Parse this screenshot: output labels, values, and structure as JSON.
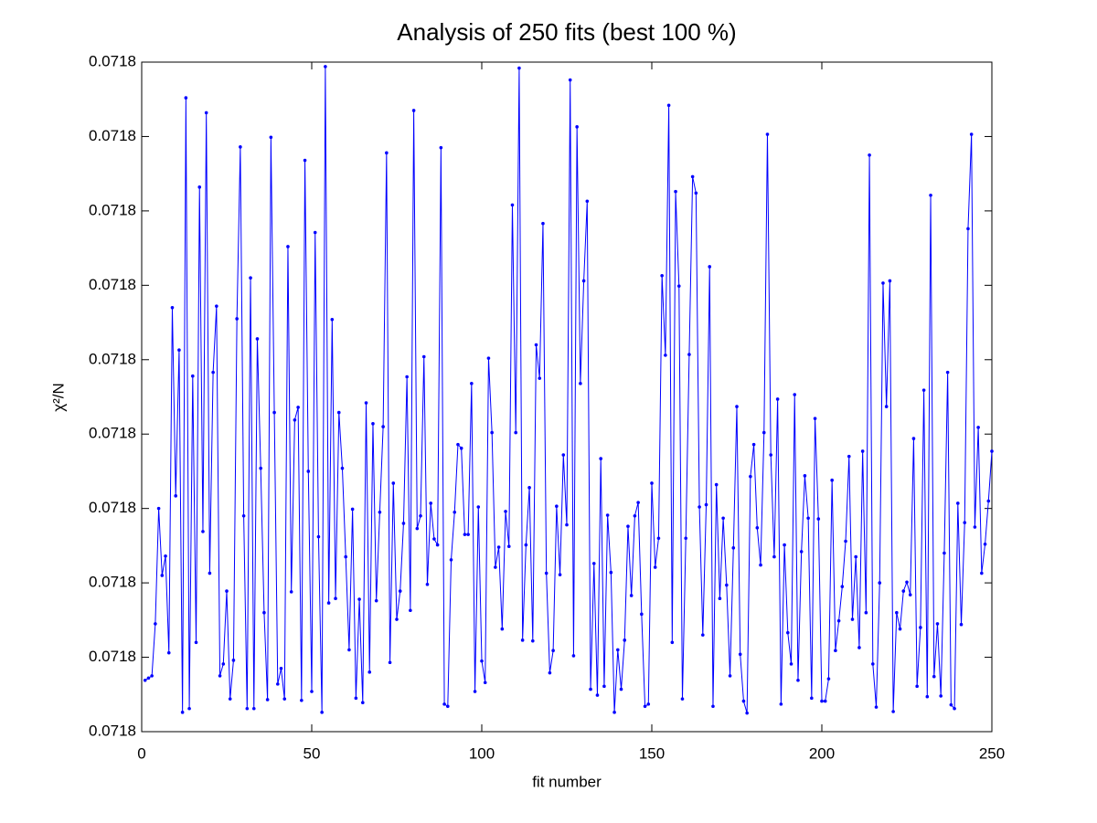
{
  "chart_data": {
    "type": "line",
    "title": "Analysis of 250 fits (best 100 %)",
    "x_label": "fit number",
    "y_label": "χ²/N",
    "color": "#0000ff",
    "xlim": [
      0,
      250
    ],
    "xticks": [
      0,
      50,
      100,
      150,
      200,
      250
    ],
    "ylim": [
      0.071796,
      0.071805
    ],
    "yticks": [
      {
        "value": 0.071796,
        "label": "0.0718"
      },
      {
        "value": 0.071797,
        "label": "0.0718"
      },
      {
        "value": 0.071798,
        "label": "0.0718"
      },
      {
        "value": 0.071799,
        "label": "0.0718"
      },
      {
        "value": 0.0718,
        "label": "0.0718"
      },
      {
        "value": 0.071801,
        "label": "0.0718"
      },
      {
        "value": 0.071802,
        "label": "0.0718"
      },
      {
        "value": 0.071803,
        "label": "0.0718"
      },
      {
        "value": 0.071804,
        "label": "0.0718"
      },
      {
        "value": 0.071805,
        "label": "0.0718"
      }
    ],
    "x": [
      1,
      2,
      3,
      4,
      5,
      6,
      7,
      8,
      9,
      10,
      11,
      12,
      13,
      14,
      15,
      16,
      17,
      18,
      19,
      20,
      21,
      22,
      23,
      24,
      25,
      26,
      27,
      28,
      29,
      30,
      31,
      32,
      33,
      34,
      35,
      36,
      37,
      38,
      39,
      40,
      41,
      42,
      43,
      44,
      45,
      46,
      47,
      48,
      49,
      50,
      51,
      52,
      53,
      54,
      55,
      56,
      57,
      58,
      59,
      60,
      61,
      62,
      63,
      64,
      65,
      66,
      67,
      68,
      69,
      70,
      71,
      72,
      73,
      74,
      75,
      76,
      77,
      78,
      79,
      80,
      81,
      82,
      83,
      84,
      85,
      86,
      87,
      88,
      89,
      90,
      91,
      92,
      93,
      94,
      95,
      96,
      97,
      98,
      99,
      100,
      101,
      102,
      103,
      104,
      105,
      106,
      107,
      108,
      109,
      110,
      111,
      112,
      113,
      114,
      115,
      116,
      117,
      118,
      119,
      120,
      121,
      122,
      123,
      124,
      125,
      126,
      127,
      128,
      129,
      130,
      131,
      132,
      133,
      134,
      135,
      136,
      137,
      138,
      139,
      140,
      141,
      142,
      143,
      144,
      145,
      146,
      147,
      148,
      149,
      150,
      151,
      152,
      153,
      154,
      155,
      156,
      157,
      158,
      159,
      160,
      161,
      162,
      163,
      164,
      165,
      166,
      167,
      168,
      169,
      170,
      171,
      172,
      173,
      174,
      175,
      176,
      177,
      178,
      179,
      180,
      181,
      182,
      183,
      184,
      185,
      186,
      187,
      188,
      189,
      190,
      191,
      192,
      193,
      194,
      195,
      196,
      197,
      198,
      199,
      200,
      201,
      202,
      203,
      204,
      205,
      206,
      207,
      208,
      209,
      210,
      211,
      212,
      213,
      214,
      215,
      216,
      217,
      218,
      219,
      220,
      221,
      222,
      223,
      224,
      225,
      226,
      227,
      228,
      229,
      230,
      231,
      232,
      233,
      234,
      235,
      236,
      237,
      238,
      239,
      240,
      241,
      242,
      243,
      244,
      245,
      246,
      247,
      248,
      249,
      250
    ],
    "values": [
      0.07179669,
      0.07179672,
      0.07179675,
      0.07179745,
      0.071799,
      0.0717981,
      0.07179836,
      0.07179706,
      0.0718017,
      0.07179917,
      0.07180113,
      0.07179626,
      0.07180452,
      0.07179631,
      0.07180078,
      0.0717972,
      0.07180332,
      0.07179869,
      0.07180432,
      0.07179813,
      0.07180083,
      0.07180172,
      0.07179675,
      0.07179691,
      0.07179789,
      0.07179644,
      0.07179696,
      0.07180155,
      0.07180386,
      0.0717989,
      0.07179631,
      0.0718021,
      0.07179631,
      0.07180128,
      0.07179954,
      0.0717976,
      0.07179643,
      0.07180399,
      0.07180029,
      0.07179664,
      0.07179685,
      0.07179644,
      0.07180252,
      0.07179788,
      0.07180019,
      0.07180036,
      0.07179642,
      0.07180368,
      0.0717995,
      0.07179654,
      0.07180271,
      0.07179862,
      0.07179626,
      0.07180494,
      0.07179773,
      0.07180154,
      0.07179779,
      0.07180029,
      0.07179954,
      0.07179835,
      0.0717971,
      0.07179899,
      0.07179645,
      0.07179778,
      0.07179639,
      0.07180042,
      0.0717968,
      0.07180014,
      0.07179776,
      0.07179895,
      0.0718001,
      0.07180378,
      0.07179693,
      0.07179934,
      0.07179751,
      0.07179789,
      0.0717988,
      0.07180077,
      0.07179763,
      0.07180435,
      0.07179873,
      0.0717989,
      0.07180104,
      0.07179798,
      0.07179907,
      0.07179859,
      0.07179851,
      0.07180385,
      0.07179637,
      0.07179634,
      0.07179831,
      0.07179895,
      0.07179986,
      0.07179981,
      0.07179865,
      0.07179865,
      0.07180068,
      0.07179654,
      0.07179902,
      0.07179695,
      0.07179666,
      0.07180102,
      0.07180002,
      0.07179821,
      0.07179848,
      0.07179738,
      0.07179896,
      0.07179849,
      0.07180308,
      0.07180002,
      0.07180492,
      0.07179723,
      0.07179851,
      0.07179928,
      0.07179722,
      0.0718012,
      0.07180075,
      0.07180283,
      0.07179813,
      0.07179679,
      0.07179709,
      0.07179903,
      0.07179811,
      0.07179972,
      0.07179878,
      0.07180476,
      0.07179702,
      0.07180413,
      0.07180068,
      0.07180206,
      0.07180313,
      0.07179657,
      0.07179826,
      0.07179649,
      0.07179967,
      0.07179661,
      0.07179891,
      0.07179814,
      0.07179626,
      0.0717971,
      0.07179657,
      0.07179723,
      0.07179876,
      0.07179783,
      0.0717989,
      0.07179908,
      0.07179758,
      0.07179634,
      0.07179637,
      0.07179934,
      0.07179821,
      0.0717986,
      0.07180213,
      0.07180106,
      0.07180442,
      0.0717972,
      0.07180326,
      0.07180199,
      0.07179644,
      0.0717986,
      0.07180107,
      0.07180346,
      0.07180324,
      0.07179902,
      0.0717973,
      0.07179905,
      0.07180225,
      0.07179634,
      0.07179932,
      0.07179779,
      0.07179887,
      0.07179797,
      0.07179675,
      0.07179847,
      0.07180037,
      0.07179704,
      0.07179641,
      0.07179625,
      0.07179943,
      0.07179986,
      0.07179874,
      0.07179824,
      0.07180002,
      0.07180403,
      0.07179972,
      0.07179835,
      0.07180047,
      0.07179637,
      0.07179851,
      0.07179733,
      0.07179691,
      0.07180053,
      0.07179669,
      0.07179842,
      0.07179944,
      0.07179887,
      0.07179645,
      0.07180021,
      0.07179886,
      0.07179641,
      0.07179641,
      0.07179671,
      0.07179938,
      0.07179709,
      0.07179749,
      0.07179795,
      0.07179856,
      0.0717997,
      0.07179751,
      0.07179835,
      0.07179713,
      0.07179977,
      0.0717976,
      0.07180375,
      0.07179691,
      0.07179633,
      0.071798,
      0.07180203,
      0.07180037,
      0.07180206,
      0.07179627,
      0.0717976,
      0.07179738,
      0.07179789,
      0.07179801,
      0.07179784,
      0.07179994,
      0.07179661,
      0.0717974,
      0.07180059,
      0.07179647,
      0.07180321,
      0.07179674,
      0.07179745,
      0.07179648,
      0.0717984,
      0.07180083,
      0.07179636,
      0.07179631,
      0.07179907,
      0.07179744,
      0.07179881,
      0.07180276,
      0.07180403,
      0.07179875,
      0.07180009,
      0.07179813,
      0.07179852,
      0.0717991,
      0.07179977
    ]
  }
}
